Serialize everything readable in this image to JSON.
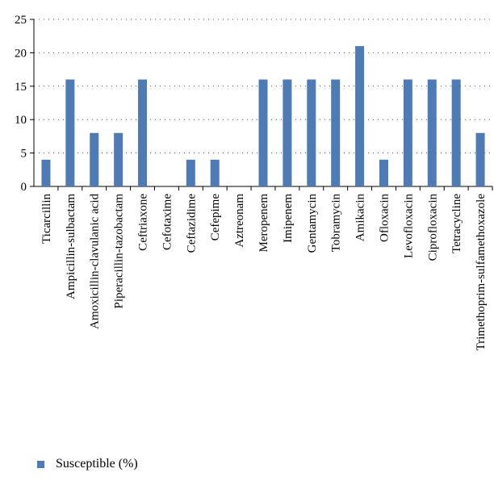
{
  "chart_data": {
    "type": "bar",
    "categories": [
      "Ticarcillin",
      "Ampicillin-sulbactam",
      "Amoxicillin-clavulanic acid",
      "Piperacillin-tazobactam",
      "Ceftriaxone",
      "Cefotaxime",
      "Ceftazidime",
      "Cefepime",
      "Aztreonam",
      "Meropenem",
      "Imipenem",
      "Gentamycin",
      "Tobramycin",
      "Amikacin",
      "Ofloxacin",
      "Levofloxacin",
      "Ciprofloxacin",
      "Tetracycline",
      "Trimethoprim-sulfamethoxazole"
    ],
    "series": [
      {
        "name": "Susceptible (%)",
        "values": [
          4,
          16,
          8,
          8,
          16,
          0,
          4,
          4,
          0,
          16,
          16,
          16,
          16,
          21,
          4,
          16,
          16,
          16,
          8
        ],
        "color": "#4e7ab5"
      }
    ],
    "ylim": [
      0,
      25
    ],
    "yticks": [
      0,
      5,
      10,
      15,
      20,
      25
    ],
    "grid": true,
    "legend_position": "bottom-left"
  }
}
